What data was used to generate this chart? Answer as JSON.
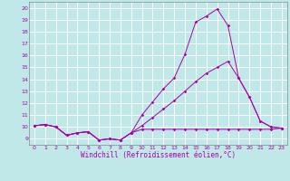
{
  "xlabel": "Windchill (Refroidissement éolien,°C)",
  "xlim": [
    -0.5,
    23.5
  ],
  "ylim": [
    8.5,
    20.5
  ],
  "yticks": [
    9,
    10,
    11,
    12,
    13,
    14,
    15,
    16,
    17,
    18,
    19,
    20
  ],
  "xticks": [
    0,
    1,
    2,
    3,
    4,
    5,
    6,
    7,
    8,
    9,
    10,
    11,
    12,
    13,
    14,
    15,
    16,
    17,
    18,
    19,
    20,
    21,
    22,
    23
  ],
  "background_color": "#c0e8e8",
  "line_color": "#aa00aa",
  "grid_color": "#ffffff",
  "line1_x": [
    0,
    1,
    2,
    3,
    4,
    5,
    6,
    7,
    8,
    9,
    10,
    11,
    12,
    13,
    14,
    15,
    16,
    17,
    18,
    19,
    20,
    21,
    22,
    23
  ],
  "line1_y": [
    10.1,
    10.2,
    10.0,
    9.3,
    9.5,
    9.6,
    8.9,
    9.0,
    8.9,
    9.5,
    9.8,
    9.8,
    9.8,
    9.8,
    9.8,
    9.8,
    9.8,
    9.8,
    9.8,
    9.8,
    9.8,
    9.8,
    9.8,
    9.9
  ],
  "line2_x": [
    0,
    1,
    2,
    3,
    4,
    5,
    6,
    7,
    8,
    9,
    10,
    11,
    12,
    13,
    14,
    15,
    16,
    17,
    18,
    19,
    20,
    21,
    22,
    23
  ],
  "line2_y": [
    10.1,
    10.2,
    10.0,
    9.3,
    9.5,
    9.6,
    8.9,
    9.0,
    8.9,
    9.5,
    10.1,
    10.8,
    11.5,
    12.2,
    13.0,
    13.8,
    14.5,
    15.0,
    15.5,
    14.1,
    12.5,
    10.5,
    10.0,
    9.9
  ],
  "line3_x": [
    0,
    1,
    2,
    3,
    4,
    5,
    6,
    7,
    8,
    9,
    10,
    11,
    12,
    13,
    14,
    15,
    16,
    17,
    18,
    19,
    20,
    21,
    22,
    23
  ],
  "line3_y": [
    10.1,
    10.2,
    10.0,
    9.3,
    9.5,
    9.6,
    8.9,
    9.0,
    8.9,
    9.5,
    11.0,
    12.1,
    13.2,
    14.1,
    16.1,
    18.8,
    19.3,
    19.9,
    18.5,
    14.1,
    12.5,
    10.5,
    10.0,
    9.9
  ]
}
